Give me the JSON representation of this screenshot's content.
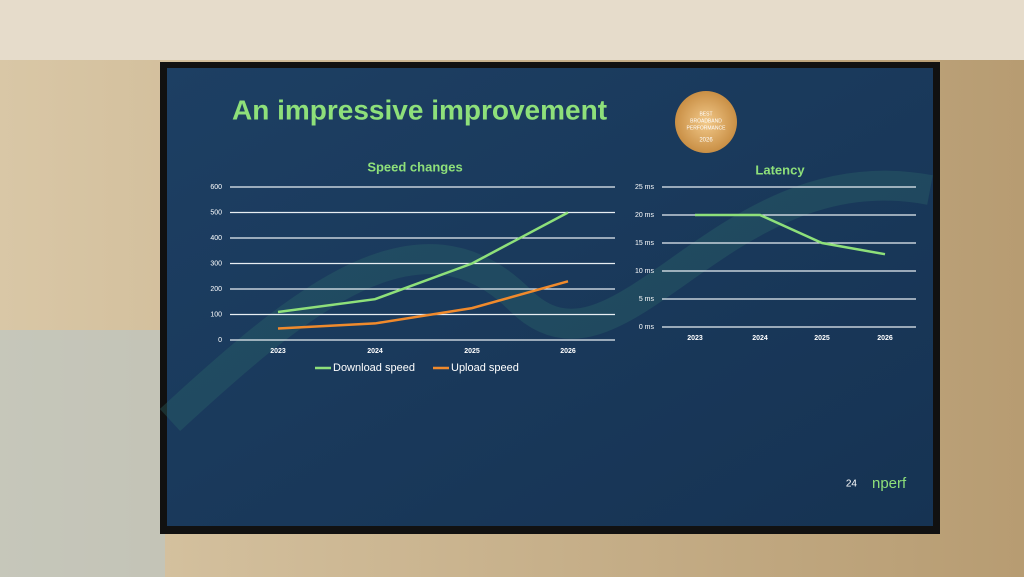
{
  "slide": {
    "title": "An impressive improvement",
    "page_number": "24",
    "logo": "nperf",
    "badge": {
      "lines": [
        "BEST",
        "BROADBAND",
        "PERFORMANCE"
      ],
      "year": "2026"
    }
  },
  "chart_data": [
    {
      "type": "line",
      "title": "Speed changes",
      "categories": [
        "2023",
        "2024",
        "2025",
        "2026"
      ],
      "series": [
        {
          "name": "Download speed",
          "color": "#8ee07a",
          "values": [
            110,
            160,
            300,
            500
          ]
        },
        {
          "name": "Upload speed",
          "color": "#f08a2c",
          "values": [
            45,
            65,
            125,
            230
          ]
        }
      ],
      "ylim": [
        0,
        600
      ],
      "yticks": [
        0,
        100,
        200,
        300,
        400,
        500,
        600
      ],
      "grid": true,
      "legend": "bottom"
    },
    {
      "type": "line",
      "title": "Latency",
      "categories": [
        "2023",
        "2024",
        "2025",
        "2026"
      ],
      "series": [
        {
          "color": "#8ee07a",
          "values": [
            20,
            20,
            15,
            13
          ]
        }
      ],
      "ylim": [
        0,
        25
      ],
      "yticks": [
        {
          "value": 0,
          "label": "0 ms"
        },
        {
          "value": 5,
          "label": "5 ms"
        },
        {
          "value": 10,
          "label": "10 ms"
        },
        {
          "value": 15,
          "label": "15 ms"
        },
        {
          "value": 20,
          "label": "20 ms"
        },
        {
          "value": 25,
          "label": "25 ms"
        }
      ],
      "grid": true
    }
  ]
}
